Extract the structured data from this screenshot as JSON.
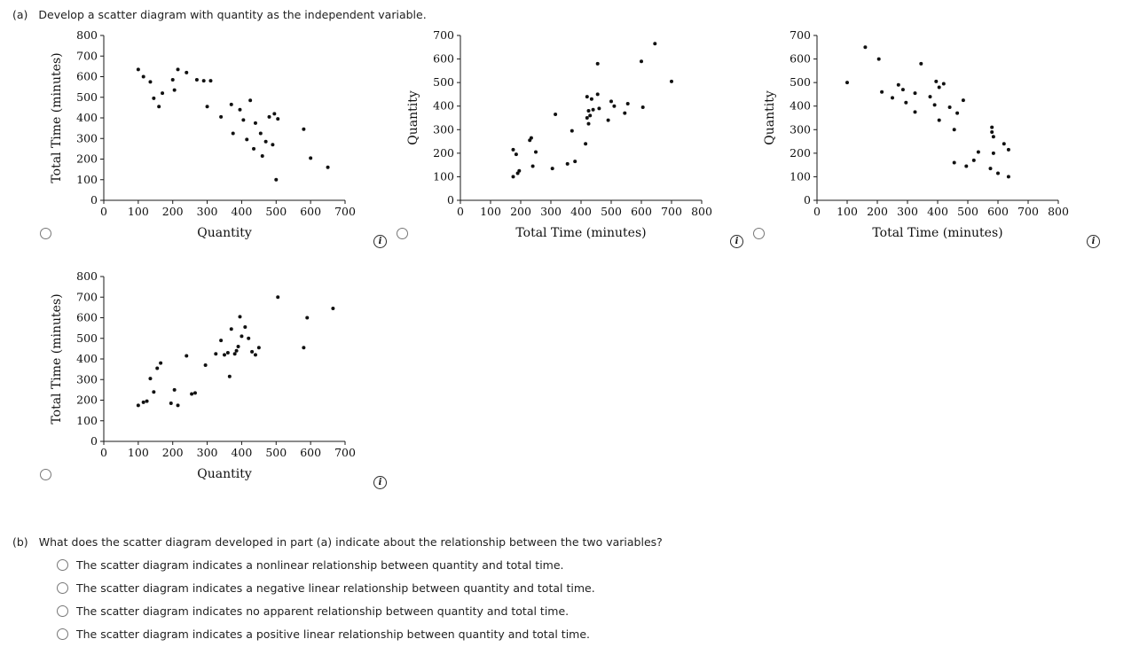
{
  "part_a": {
    "label": "(a)",
    "question": "Develop a scatter diagram with quantity as the independent variable."
  },
  "icons": {
    "info_glyph": "i"
  },
  "chart_data": [
    {
      "type": "scatter",
      "xlabel": "Quantity",
      "ylabel": "Total Time (minutes)",
      "xlim": [
        0,
        700
      ],
      "xstep": 100,
      "ylim": [
        0,
        800
      ],
      "ystep": 100,
      "grid": false,
      "trend": "negative linear",
      "points": [
        [
          100,
          635
        ],
        [
          115,
          600
        ],
        [
          135,
          575
        ],
        [
          145,
          495
        ],
        [
          160,
          455
        ],
        [
          170,
          520
        ],
        [
          200,
          585
        ],
        [
          205,
          535
        ],
        [
          215,
          635
        ],
        [
          240,
          620
        ],
        [
          270,
          585
        ],
        [
          290,
          580
        ],
        [
          300,
          455
        ],
        [
          310,
          580
        ],
        [
          340,
          405
        ],
        [
          370,
          465
        ],
        [
          375,
          325
        ],
        [
          395,
          440
        ],
        [
          405,
          390
        ],
        [
          415,
          295
        ],
        [
          425,
          485
        ],
        [
          435,
          250
        ],
        [
          440,
          375
        ],
        [
          455,
          325
        ],
        [
          460,
          215
        ],
        [
          470,
          285
        ],
        [
          480,
          405
        ],
        [
          490,
          270
        ],
        [
          495,
          420
        ],
        [
          505,
          395
        ],
        [
          500,
          100
        ],
        [
          580,
          345
        ],
        [
          600,
          205
        ],
        [
          650,
          160
        ]
      ]
    },
    {
      "type": "scatter",
      "xlabel": "Total Time (minutes)",
      "ylabel": "Quantity",
      "xlim": [
        0,
        800
      ],
      "xstep": 100,
      "ylim": [
        0,
        700
      ],
      "ystep": 100,
      "grid": false,
      "trend": "positive linear",
      "points": [
        [
          175,
          100
        ],
        [
          190,
          115
        ],
        [
          195,
          125
        ],
        [
          305,
          135
        ],
        [
          240,
          145
        ],
        [
          355,
          155
        ],
        [
          380,
          165
        ],
        [
          185,
          195
        ],
        [
          250,
          205
        ],
        [
          175,
          215
        ],
        [
          415,
          240
        ],
        [
          230,
          255
        ],
        [
          235,
          265
        ],
        [
          370,
          295
        ],
        [
          425,
          325
        ],
        [
          490,
          340
        ],
        [
          420,
          350
        ],
        [
          430,
          360
        ],
        [
          315,
          365
        ],
        [
          545,
          370
        ],
        [
          425,
          380
        ],
        [
          440,
          385
        ],
        [
          460,
          390
        ],
        [
          605,
          395
        ],
        [
          510,
          400
        ],
        [
          555,
          410
        ],
        [
          500,
          420
        ],
        [
          435,
          430
        ],
        [
          420,
          440
        ],
        [
          455,
          450
        ],
        [
          700,
          505
        ],
        [
          600,
          590
        ],
        [
          455,
          580
        ],
        [
          645,
          665
        ]
      ]
    },
    {
      "type": "scatter",
      "xlabel": "Total Time (minutes)",
      "ylabel": "Quantity",
      "xlim": [
        0,
        800
      ],
      "xstep": 100,
      "ylim": [
        0,
        700
      ],
      "ystep": 100,
      "grid": false,
      "trend": "negative linear",
      "points": [
        [
          635,
          100
        ],
        [
          600,
          115
        ],
        [
          575,
          135
        ],
        [
          495,
          145
        ],
        [
          455,
          160
        ],
        [
          520,
          170
        ],
        [
          585,
          200
        ],
        [
          535,
          205
        ],
        [
          635,
          215
        ],
        [
          620,
          240
        ],
        [
          585,
          270
        ],
        [
          580,
          290
        ],
        [
          455,
          300
        ],
        [
          580,
          310
        ],
        [
          405,
          340
        ],
        [
          465,
          370
        ],
        [
          325,
          375
        ],
        [
          440,
          395
        ],
        [
          390,
          405
        ],
        [
          295,
          415
        ],
        [
          485,
          425
        ],
        [
          250,
          435
        ],
        [
          375,
          440
        ],
        [
          325,
          455
        ],
        [
          215,
          460
        ],
        [
          285,
          470
        ],
        [
          405,
          480
        ],
        [
          270,
          490
        ],
        [
          420,
          495
        ],
        [
          395,
          505
        ],
        [
          100,
          500
        ],
        [
          345,
          580
        ],
        [
          205,
          600
        ],
        [
          160,
          650
        ]
      ]
    },
    {
      "type": "scatter",
      "xlabel": "Quantity",
      "ylabel": "Total Time (minutes)",
      "xlim": [
        0,
        700
      ],
      "xstep": 100,
      "ylim": [
        0,
        800
      ],
      "ystep": 100,
      "grid": false,
      "trend": "positive linear",
      "points": [
        [
          100,
          175
        ],
        [
          115,
          190
        ],
        [
          125,
          195
        ],
        [
          135,
          305
        ],
        [
          145,
          240
        ],
        [
          155,
          355
        ],
        [
          165,
          380
        ],
        [
          195,
          185
        ],
        [
          205,
          250
        ],
        [
          215,
          175
        ],
        [
          240,
          415
        ],
        [
          255,
          230
        ],
        [
          265,
          235
        ],
        [
          295,
          370
        ],
        [
          325,
          425
        ],
        [
          340,
          490
        ],
        [
          350,
          420
        ],
        [
          360,
          430
        ],
        [
          365,
          315
        ],
        [
          370,
          545
        ],
        [
          380,
          425
        ],
        [
          385,
          440
        ],
        [
          390,
          460
        ],
        [
          395,
          605
        ],
        [
          400,
          510
        ],
        [
          410,
          555
        ],
        [
          420,
          500
        ],
        [
          430,
          435
        ],
        [
          440,
          420
        ],
        [
          450,
          455
        ],
        [
          505,
          700
        ],
        [
          590,
          600
        ],
        [
          580,
          455
        ],
        [
          665,
          645
        ]
      ]
    }
  ],
  "part_b": {
    "label": "(b)",
    "question": "What does the scatter diagram developed in part (a) indicate about the relationship between the two variables?",
    "options": [
      "The scatter diagram indicates a nonlinear relationship between quantity and total time.",
      "The scatter diagram indicates a negative linear relationship between quantity and total time.",
      "The scatter diagram indicates no apparent relationship between quantity and total time.",
      "The scatter diagram indicates a positive linear relationship between quantity and total time."
    ]
  }
}
